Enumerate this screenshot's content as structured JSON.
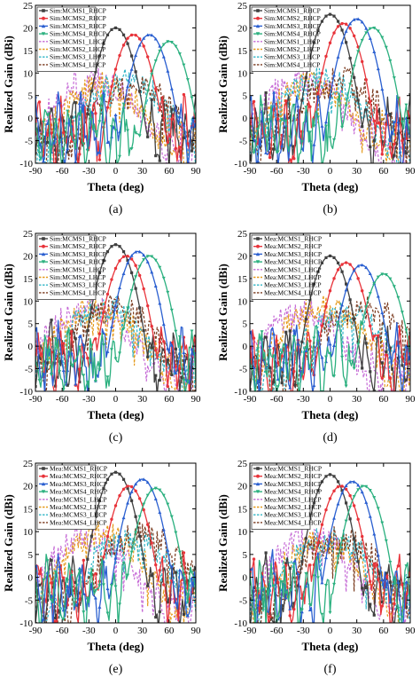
{
  "figure": {
    "panels": [
      {
        "id": "a",
        "caption": "(a)",
        "legend": [
          "Sim:MCMS1_RHCP",
          "Sim:MCMS2_RHCP",
          "Sim:MCMS3_RHCP",
          "Sim:MCMS4_RHCP",
          "Sim:MCMS1_LHCP",
          "Sim:MCMS2_LHCP",
          "Sim:MCMS3_LHCP",
          "Sim:MCMS4_LHCP"
        ]
      },
      {
        "id": "b",
        "caption": "(b)",
        "legend": [
          "Sim:MCMS1_RHCP",
          "Sim:MCMS2_RHCP",
          "Sim:MCMS3_RHCP",
          "Sim:MCMS4_RHCP",
          "Sim:MCMS1_LHCP",
          "Sim:MCMS2_LHCP",
          "Sim:MCMS3_LHCP",
          "Sim:MCMS4_LHCP"
        ]
      },
      {
        "id": "c",
        "caption": "(c)",
        "legend": [
          "Sim:MCMS1_RHCP",
          "Sim:MCMS2_RHCP",
          "Sim:MCMS3_RHCP",
          "Sim:MCMS4_RHCP",
          "Sim:MCMS1_LHCP",
          "Sim:MCMS2_LHCP",
          "Sim:MCMS3_LHCP",
          "Sim:MCMS4_LHCP"
        ]
      },
      {
        "id": "d",
        "caption": "(d)",
        "legend": [
          "Mea:MCMS1_RHCP",
          "Mea:MCMS2_RHCP",
          "Mea:MCMS3_RHCP",
          "Mea:MCMS4_RHCP",
          "Mea:MCMS1_LHCP",
          "Mea:MCMS2_LHCP",
          "Mea:MCMS3_LHCP",
          "Mea:MCMS4_LHCP"
        ]
      },
      {
        "id": "e",
        "caption": "(e)",
        "legend": [
          "Mea:MCMS1_RHCP",
          "Mea:MCMS2_RHCP",
          "Mea:MCMS3_RHCP",
          "Mea:MCMS4_RHCP",
          "Mea:MCMS1_LHCP",
          "Mea:MCMS2_LHCP",
          "Mea:MCMS3_LHCP",
          "Mea:MCMS4_LHCP"
        ]
      },
      {
        "id": "f",
        "caption": "(f)",
        "legend": [
          "Mea:MCMS1_RHCP",
          "Mea:MCMS2_RHCP",
          "Mea:MCMS3_RHCP",
          "Mea:MCMS4_RHCP",
          "Mea:MCMS1_LHCP",
          "Mea:MCMS2_LHCP",
          "Mea:MCMS3_LHCP",
          "Mea:MCMS4_LHCP"
        ]
      }
    ],
    "series_colors": [
      "#404040",
      "#e8333a",
      "#2a5fd0",
      "#2bb07f",
      "#c66bd6",
      "#e59a1b",
      "#31b5c6",
      "#7a3a1e"
    ],
    "series_styles": [
      "solid",
      "solid",
      "solid",
      "solid",
      "dashed",
      "dashed",
      "dashed",
      "dashed"
    ]
  },
  "chart_data": [
    {
      "type": "line",
      "panel": "a",
      "xlabel": "Theta (deg)",
      "ylabel": "Realized Gain (dBi)",
      "xlim": [
        -90,
        90
      ],
      "ylim": [
        -10,
        25
      ],
      "xticks": [
        -90,
        -60,
        -30,
        0,
        30,
        60,
        90
      ],
      "yticks": [
        -10,
        -5,
        0,
        5,
        10,
        15,
        20,
        25
      ],
      "legend_position": "top-left",
      "series": [
        {
          "name": "Sim:MCMS1_RHCP",
          "peak": [
            0,
            20
          ]
        },
        {
          "name": "Sim:MCMS2_RHCP",
          "peak": [
            20,
            18.5
          ]
        },
        {
          "name": "Sim:MCMS3_RHCP",
          "peak": [
            38,
            18.5
          ]
        },
        {
          "name": "Sim:MCMS4_RHCP",
          "peak": [
            60,
            17
          ]
        },
        {
          "name": "Sim:MCMS1_LHCP",
          "peak": [
            -25,
            9
          ]
        },
        {
          "name": "Sim:MCMS2_LHCP",
          "peak": [
            -15,
            8
          ]
        },
        {
          "name": "Sim:MCMS3_LHCP",
          "peak": [
            10,
            9
          ]
        },
        {
          "name": "Sim:MCMS4_LHCP",
          "peak": [
            20,
            8
          ]
        }
      ]
    },
    {
      "type": "line",
      "panel": "b",
      "xlabel": "Theta (deg)",
      "ylabel": "Realized Gain (dBi)",
      "xlim": [
        -90,
        90
      ],
      "ylim": [
        -10,
        25
      ],
      "xticks": [
        -90,
        -60,
        -30,
        0,
        30,
        60,
        90
      ],
      "yticks": [
        -10,
        -5,
        0,
        5,
        10,
        15,
        20,
        25
      ],
      "legend_position": "top-left",
      "series": [
        {
          "name": "Sim:MCMS1_RHCP",
          "peak": [
            0,
            23
          ]
        },
        {
          "name": "Sim:MCMS2_RHCP",
          "peak": [
            15,
            21
          ]
        },
        {
          "name": "Sim:MCMS3_RHCP",
          "peak": [
            30,
            22
          ]
        },
        {
          "name": "Sim:MCMS4_RHCP",
          "peak": [
            48,
            20
          ]
        },
        {
          "name": "Sim:MCMS1_LHCP",
          "peak": [
            -30,
            9
          ]
        },
        {
          "name": "Sim:MCMS2_LHCP",
          "peak": [
            -20,
            8
          ]
        },
        {
          "name": "Sim:MCMS3_LHCP",
          "peak": [
            -10,
            9
          ]
        },
        {
          "name": "Sim:MCMS4_LHCP",
          "peak": [
            10,
            9
          ]
        }
      ]
    },
    {
      "type": "line",
      "panel": "c",
      "xlabel": "Theta (deg)",
      "ylabel": "Realized Gain (dBi)",
      "xlim": [
        -90,
        90
      ],
      "ylim": [
        -10,
        25
      ],
      "xticks": [
        -90,
        -60,
        -30,
        0,
        30,
        60,
        90
      ],
      "yticks": [
        -10,
        -5,
        0,
        5,
        10,
        15,
        20,
        25
      ],
      "legend_position": "top-left",
      "series": [
        {
          "name": "Sim:MCMS1_RHCP",
          "peak": [
            0,
            22.5
          ]
        },
        {
          "name": "Sim:MCMS2_RHCP",
          "peak": [
            12,
            20
          ]
        },
        {
          "name": "Sim:MCMS3_RHCP",
          "peak": [
            25,
            21
          ]
        },
        {
          "name": "Sim:MCMS4_RHCP",
          "peak": [
            38,
            20
          ]
        },
        {
          "name": "Sim:MCMS1_LHCP",
          "peak": [
            -30,
            9
          ]
        },
        {
          "name": "Sim:MCMS2_LHCP",
          "peak": [
            -20,
            9
          ]
        },
        {
          "name": "Sim:MCMS3_LHCP",
          "peak": [
            -10,
            9
          ]
        },
        {
          "name": "Sim:MCMS4_LHCP",
          "peak": [
            0,
            9
          ]
        }
      ]
    },
    {
      "type": "line",
      "panel": "d",
      "xlabel": "Theta (deg)",
      "ylabel": "Realized Gain (dBi)",
      "xlim": [
        -90,
        90
      ],
      "ylim": [
        -10,
        25
      ],
      "xticks": [
        -90,
        -60,
        -30,
        0,
        30,
        60,
        90
      ],
      "yticks": [
        -10,
        -5,
        0,
        5,
        10,
        15,
        20,
        25
      ],
      "legend_position": "top-left",
      "series": [
        {
          "name": "Mea:MCMS1_RHCP",
          "peak": [
            0,
            20
          ]
        },
        {
          "name": "Mea:MCMS2_RHCP",
          "peak": [
            18,
            18.5
          ]
        },
        {
          "name": "Mea:MCMS3_RHCP",
          "peak": [
            35,
            18
          ]
        },
        {
          "name": "Mea:MCMS4_RHCP",
          "peak": [
            60,
            16
          ]
        },
        {
          "name": "Mea:MCMS1_LHCP",
          "peak": [
            -30,
            8
          ]
        },
        {
          "name": "Mea:MCMS2_LHCP",
          "peak": [
            -10,
            9
          ]
        },
        {
          "name": "Mea:MCMS3_LHCP",
          "peak": [
            20,
            8
          ]
        },
        {
          "name": "Mea:MCMS4_LHCP",
          "peak": [
            40,
            9
          ]
        }
      ]
    },
    {
      "type": "line",
      "panel": "e",
      "xlabel": "Theta (deg)",
      "ylabel": "Realized Gain (dBi)",
      "xlim": [
        -90,
        90
      ],
      "ylim": [
        -10,
        25
      ],
      "xticks": [
        -90,
        -60,
        -30,
        0,
        30,
        60,
        90
      ],
      "yticks": [
        -10,
        -5,
        0,
        5,
        10,
        15,
        20,
        25
      ],
      "legend_position": "top-left",
      "series": [
        {
          "name": "Mea:MCMS1_RHCP",
          "peak": [
            0,
            23
          ]
        },
        {
          "name": "Mea:MCMS2_RHCP",
          "peak": [
            15,
            20
          ]
        },
        {
          "name": "Mea:MCMS3_RHCP",
          "peak": [
            30,
            21.5
          ]
        },
        {
          "name": "Mea:MCMS4_RHCP",
          "peak": [
            45,
            19.5
          ]
        },
        {
          "name": "Mea:MCMS1_LHCP",
          "peak": [
            -30,
            9
          ]
        },
        {
          "name": "Mea:MCMS2_LHCP",
          "peak": [
            -15,
            10
          ]
        },
        {
          "name": "Mea:MCMS3_LHCP",
          "peak": [
            15,
            9
          ]
        },
        {
          "name": "Mea:MCMS4_LHCP",
          "peak": [
            30,
            10
          ]
        }
      ]
    },
    {
      "type": "line",
      "panel": "f",
      "xlabel": "Theta (deg)",
      "ylabel": "Realized Gain (dBi)",
      "xlim": [
        -90,
        90
      ],
      "ylim": [
        -10,
        25
      ],
      "xticks": [
        -90,
        -60,
        -30,
        0,
        30,
        60,
        90
      ],
      "yticks": [
        -10,
        -5,
        0,
        5,
        10,
        15,
        20,
        25
      ],
      "legend_position": "top-left",
      "series": [
        {
          "name": "Mea:MCMS1_RHCP",
          "peak": [
            0,
            22.5
          ]
        },
        {
          "name": "Mea:MCMS2_RHCP",
          "peak": [
            12,
            20
          ]
        },
        {
          "name": "Mea:MCMS3_RHCP",
          "peak": [
            25,
            21
          ]
        },
        {
          "name": "Mea:MCMS4_RHCP",
          "peak": [
            38,
            20
          ]
        },
        {
          "name": "Mea:MCMS1_LHCP",
          "peak": [
            -20,
            9
          ]
        },
        {
          "name": "Mea:MCMS2_LHCP",
          "peak": [
            -10,
            8
          ]
        },
        {
          "name": "Mea:MCMS3_LHCP",
          "peak": [
            0,
            9
          ]
        },
        {
          "name": "Mea:MCMS4_LHCP",
          "peak": [
            10,
            9
          ]
        }
      ]
    }
  ]
}
